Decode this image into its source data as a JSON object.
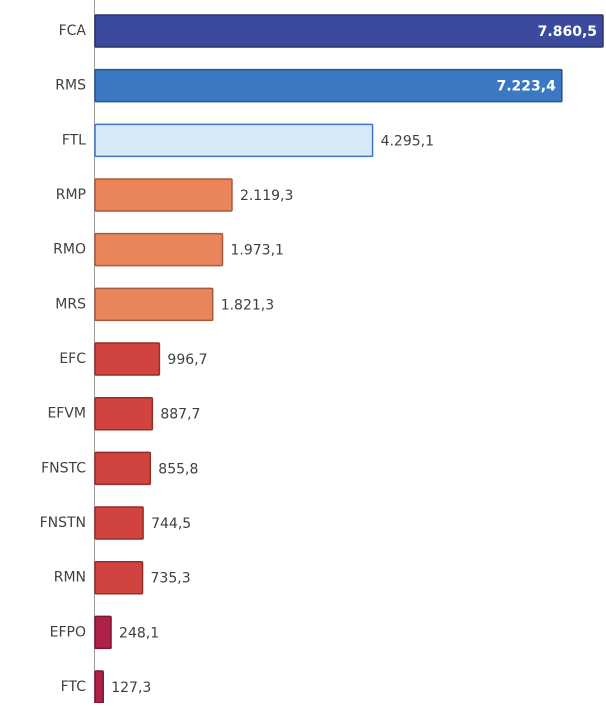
{
  "chart_data": {
    "type": "bar",
    "orientation": "horizontal",
    "categories": [
      "FCA",
      "RMS",
      "FTL",
      "RMP",
      "RMO",
      "MRS",
      "EFC",
      "EFVM",
      "FNSTC",
      "FNSTN",
      "RMN",
      "EFPO",
      "FTC"
    ],
    "values": [
      7860.5,
      7223.4,
      4295.1,
      2119.3,
      1973.1,
      1821.3,
      996.7,
      887.7,
      855.8,
      744.5,
      735.3,
      248.1,
      127.3
    ],
    "value_labels": [
      "7.860,5",
      "7.223,4",
      "4.295,1",
      "2.119,3",
      "1.973,1",
      "1.821,3",
      "996,7",
      "887,7",
      "855,8",
      "744,5",
      "735,3",
      "248,1",
      "127,3"
    ],
    "colors": [
      "#3b4a9c",
      "#3a79c1",
      "#d6eaf9",
      "#e9845b",
      "#e9845b",
      "#e9845b",
      "#d1433f",
      "#d1433f",
      "#d1433f",
      "#d1433f",
      "#d1433f",
      "#b0214a",
      "#b0214a"
    ]
  }
}
